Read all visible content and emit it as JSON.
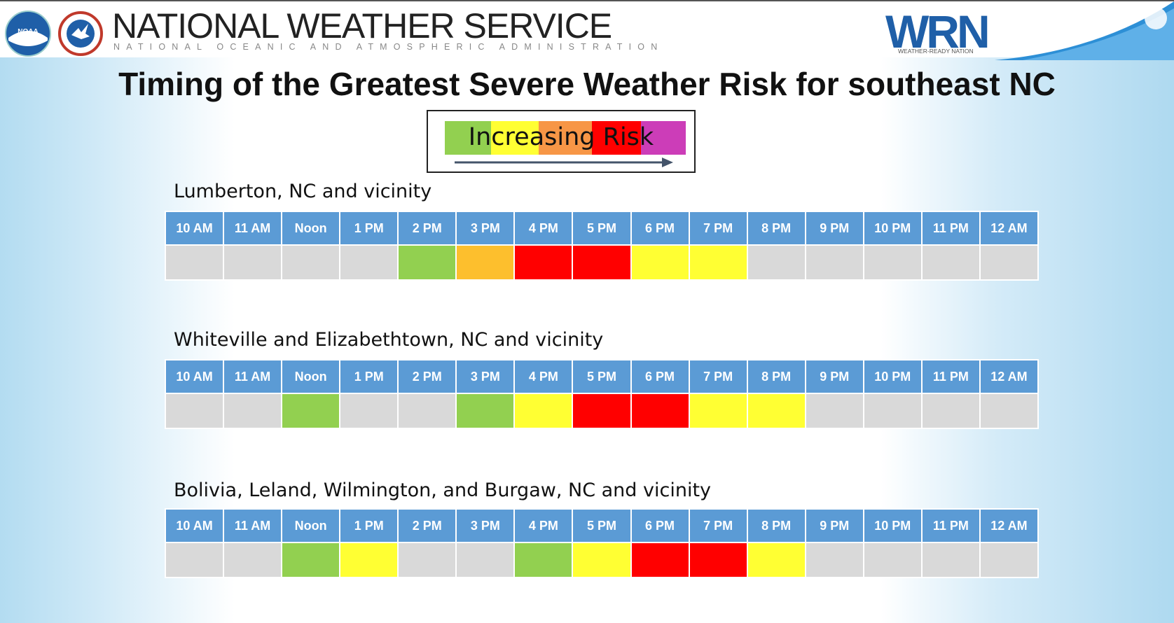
{
  "header": {
    "noaa_logo_text": "NOAA",
    "nws_seal_text": "NATIONAL WEATHER SERVICE",
    "title": "NATIONAL WEATHER SERVICE",
    "subtitle": "NATIONAL OCEANIC AND ATMOSPHERIC ADMINISTRATION",
    "wrn_logo_text": "WRN",
    "wrn_subtitle": "WEATHER-READY NATION"
  },
  "page_title": "Timing of the Greatest Severe Weather Risk for southeast NC",
  "legend": {
    "label": "Increasing Risk",
    "colors": [
      "#92d050",
      "#ffff33",
      "#f79646",
      "#ff0000",
      "#cc3db8"
    ]
  },
  "colors": {
    "none": "#d9d9d9",
    "green": "#92d050",
    "yellow": "#ffff33",
    "orange": "#fdbf2d",
    "red": "#ff0000",
    "header_blue": "#5b9bd5"
  },
  "hours": [
    "10 AM",
    "11 AM",
    "Noon",
    "1 PM",
    "2 PM",
    "3 PM",
    "4 PM",
    "5 PM",
    "6 PM",
    "7 PM",
    "8 PM",
    "9 PM",
    "10 PM",
    "11 PM",
    "12 AM"
  ],
  "locations": [
    {
      "name": "Lumberton, NC and vicinity",
      "risk": [
        "none",
        "none",
        "none",
        "none",
        "green",
        "orange",
        "red",
        "red",
        "yellow",
        "yellow",
        "none",
        "none",
        "none",
        "none",
        "none"
      ]
    },
    {
      "name": "Whiteville and Elizabethtown, NC and vicinity",
      "risk": [
        "none",
        "none",
        "green",
        "none",
        "none",
        "green",
        "yellow",
        "red",
        "red",
        "yellow",
        "yellow",
        "none",
        "none",
        "none",
        "none"
      ]
    },
    {
      "name": "Bolivia, Leland, Wilmington, and Burgaw, NC and vicinity",
      "risk": [
        "none",
        "none",
        "green",
        "yellow",
        "none",
        "none",
        "green",
        "yellow",
        "red",
        "red",
        "yellow",
        "none",
        "none",
        "none",
        "none"
      ]
    }
  ]
}
